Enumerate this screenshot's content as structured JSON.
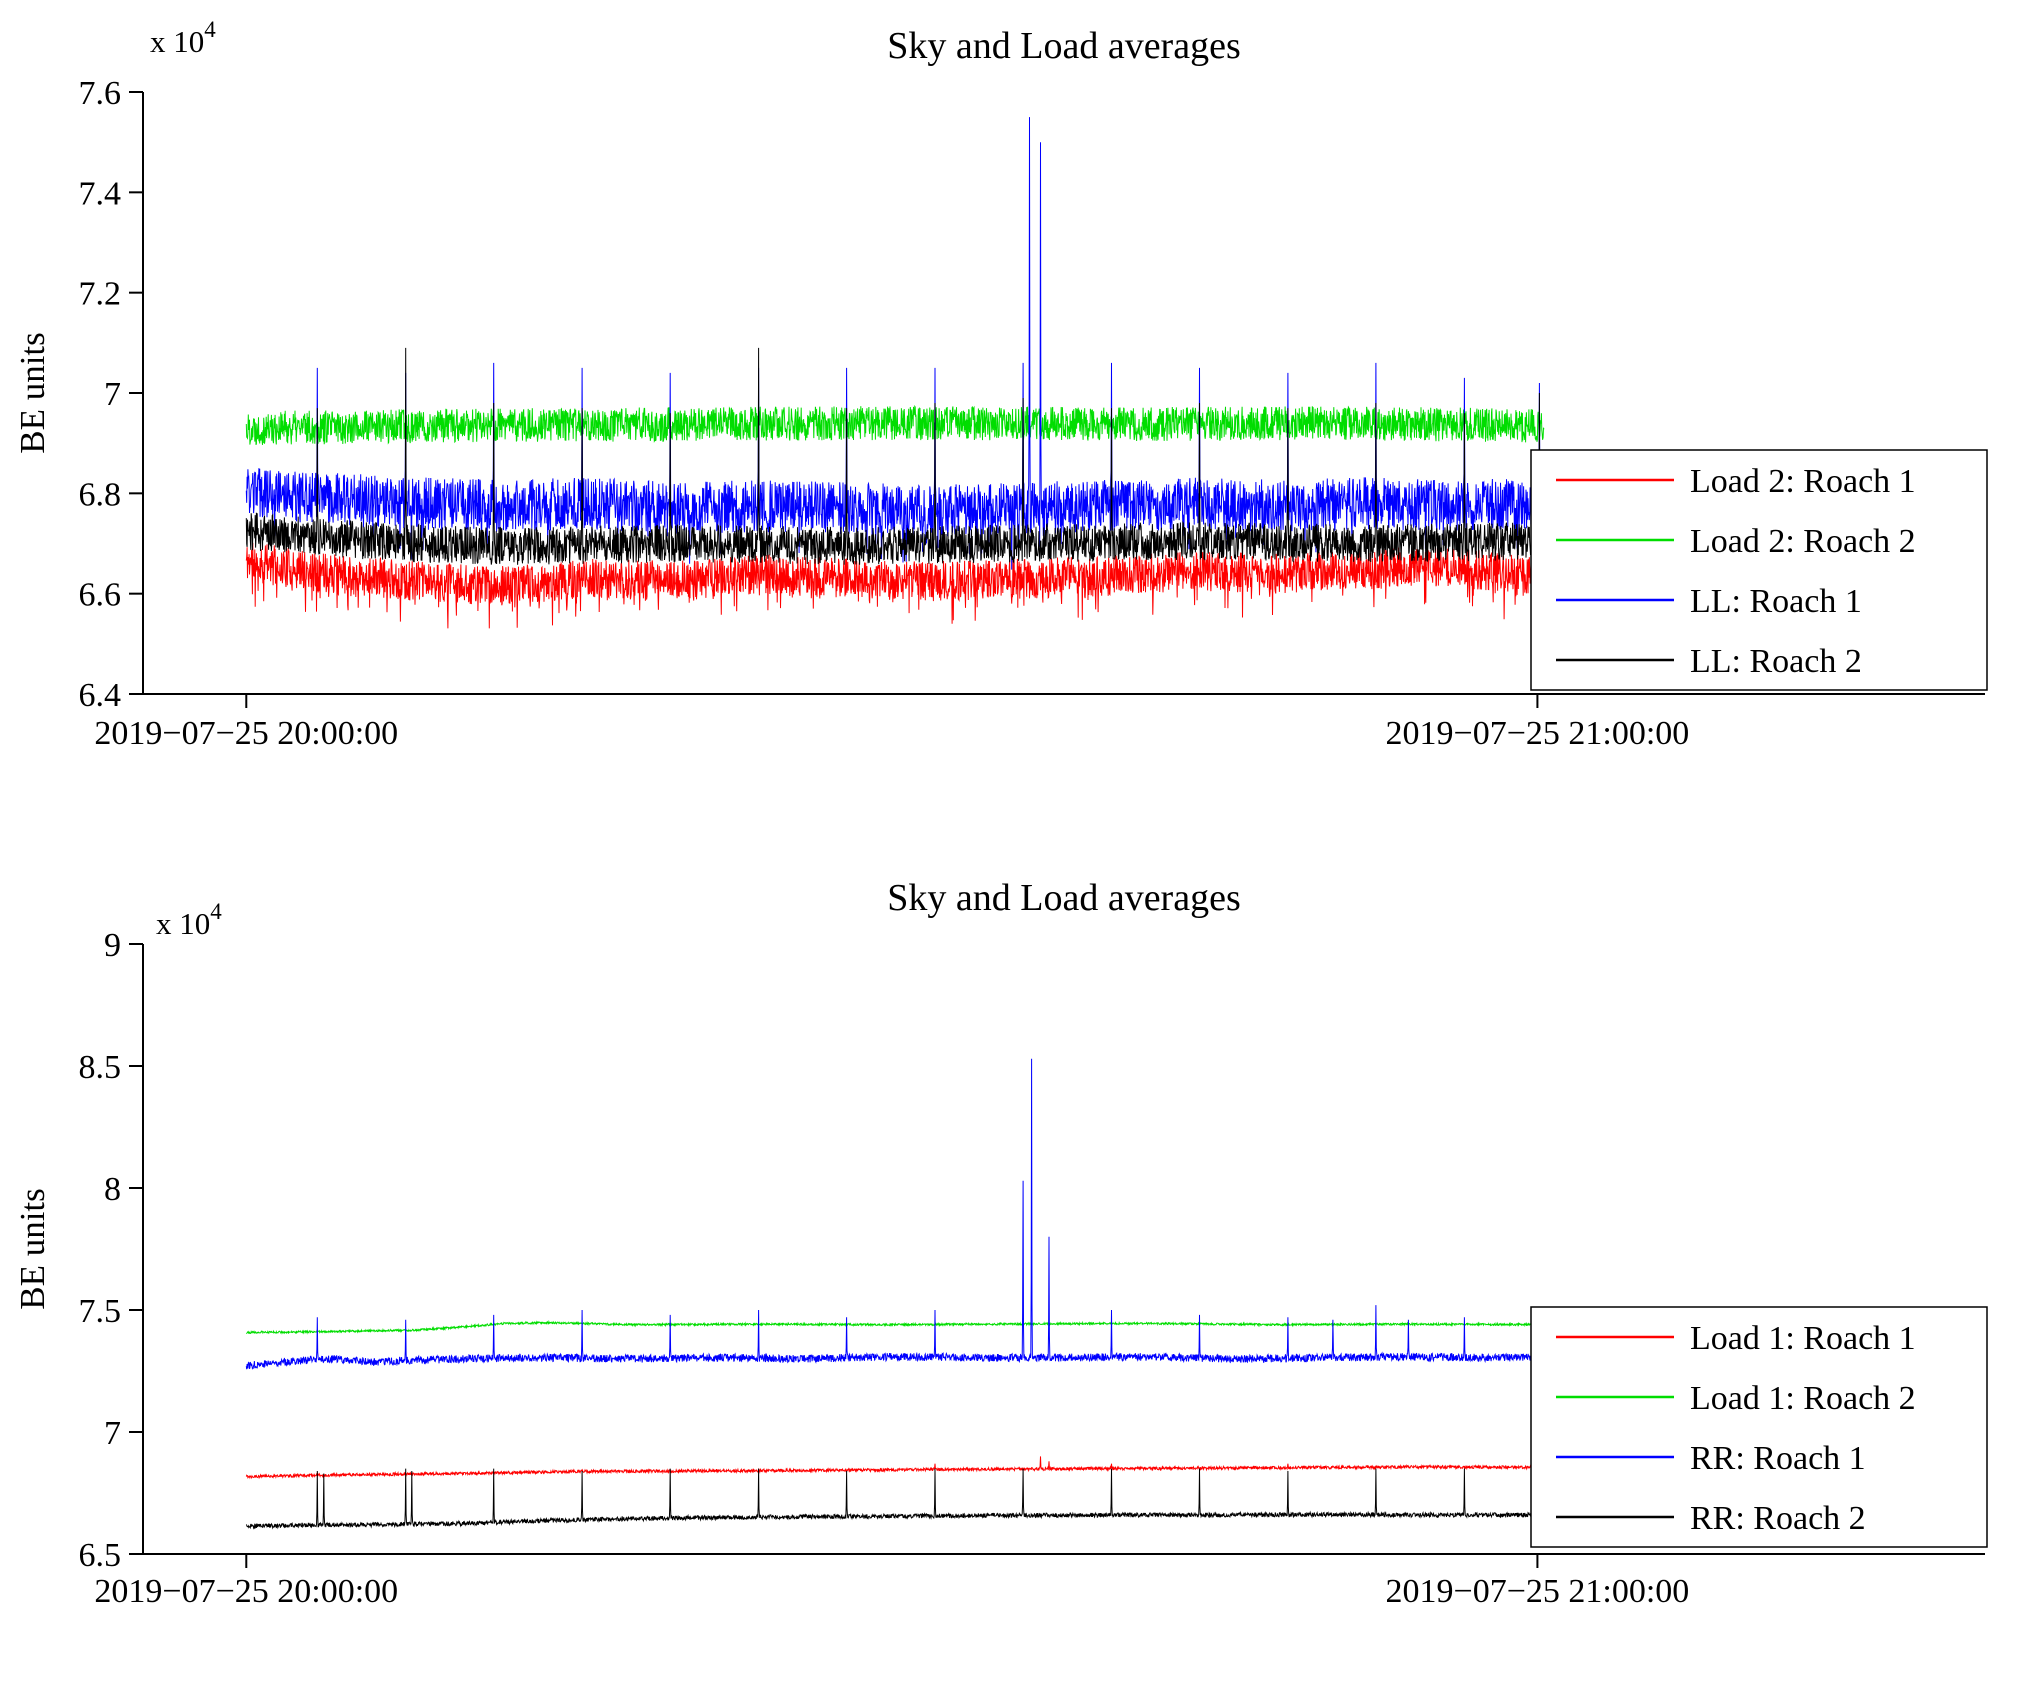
{
  "figure": {
    "background": "#ffffff",
    "axis_color": "#000000"
  },
  "chart_data": [
    {
      "type": "line",
      "title": "Sky and Load averages",
      "ylabel": "BE units",
      "scale_label": "x 10",
      "scale_exponent": "4",
      "ylim": [
        6.4,
        7.6
      ],
      "yticks": [
        {
          "v": 6.4,
          "label": "6.4"
        },
        {
          "v": 6.6,
          "label": "6.6"
        },
        {
          "v": 6.8,
          "label": "6.8"
        },
        {
          "v": 7.0,
          "label": "7"
        },
        {
          "v": 7.2,
          "label": "7.2"
        },
        {
          "v": 7.4,
          "label": "7.4"
        },
        {
          "v": 7.6,
          "label": "7.6"
        }
      ],
      "xlim": [
        -4.8,
        80.8
      ],
      "xticks": [
        {
          "v": 0,
          "label": "2019−07−25 20:00:00"
        },
        {
          "v": 60,
          "label": "2019−07−25 21:00:00"
        }
      ],
      "t_range": [
        0,
        60.3
      ],
      "samples": 3200,
      "legend_position": "right",
      "series": [
        {
          "name": "Load 2: Roach 1",
          "color": "#ff0000",
          "seed": 11,
          "noise": 0.04,
          "down_prob": 0.08,
          "down_extra": 0.06,
          "baseline": [
            [
              0,
              6.665
            ],
            [
              3,
              6.645
            ],
            [
              8,
              6.625
            ],
            [
              12,
              6.615
            ],
            [
              16,
              6.63
            ],
            [
              20,
              6.625
            ],
            [
              24,
              6.64
            ],
            [
              28,
              6.63
            ],
            [
              32,
              6.625
            ],
            [
              36,
              6.63
            ],
            [
              40,
              6.635
            ],
            [
              44,
              6.645
            ],
            [
              48,
              6.64
            ],
            [
              52,
              6.65
            ],
            [
              56,
              6.655
            ],
            [
              60.3,
              6.63
            ]
          ],
          "spikes": []
        },
        {
          "name": "Load 2: Roach 2",
          "color": "#00dd00",
          "seed": 22,
          "noise": 0.034,
          "baseline": [
            [
              0,
              6.93
            ],
            [
              10,
              6.935
            ],
            [
              20,
              6.938
            ],
            [
              30,
              6.94
            ],
            [
              40,
              6.938
            ],
            [
              50,
              6.94
            ],
            [
              60.3,
              6.935
            ]
          ],
          "spikes": []
        },
        {
          "name": "LL: Roach 1",
          "color": "#0000ff",
          "seed": 33,
          "noise": 0.052,
          "down_prob": 0.05,
          "down_extra": 0.07,
          "baseline": [
            [
              0,
              6.8
            ],
            [
              4,
              6.79
            ],
            [
              8,
              6.78
            ],
            [
              12,
              6.775
            ],
            [
              16,
              6.78
            ],
            [
              20,
              6.77
            ],
            [
              24,
              6.775
            ],
            [
              28,
              6.77
            ],
            [
              32,
              6.765
            ],
            [
              36,
              6.77
            ],
            [
              40,
              6.775
            ],
            [
              44,
              6.78
            ],
            [
              48,
              6.775
            ],
            [
              52,
              6.78
            ],
            [
              56,
              6.775
            ],
            [
              60.3,
              6.78
            ]
          ],
          "spikes": [
            [
              3.3,
              7.05
            ],
            [
              7.4,
              7.04
            ],
            [
              11.5,
              7.06
            ],
            [
              15.6,
              7.05
            ],
            [
              19.7,
              7.04
            ],
            [
              23.8,
              7.05
            ],
            [
              27.9,
              7.05
            ],
            [
              32.0,
              7.05
            ],
            [
              36.1,
              7.06
            ],
            [
              36.4,
              7.55
            ],
            [
              36.9,
              7.5
            ],
            [
              40.2,
              7.06
            ],
            [
              44.3,
              7.05
            ],
            [
              48.4,
              7.04
            ],
            [
              52.5,
              7.06
            ],
            [
              56.6,
              7.03
            ],
            [
              60.1,
              7.02
            ]
          ]
        },
        {
          "name": "LL: Roach 2",
          "color": "#000000",
          "seed": 44,
          "noise": 0.038,
          "baseline": [
            [
              0,
              6.725
            ],
            [
              4,
              6.71
            ],
            [
              8,
              6.7
            ],
            [
              12,
              6.695
            ],
            [
              20,
              6.7
            ],
            [
              28,
              6.695
            ],
            [
              36,
              6.7
            ],
            [
              44,
              6.705
            ],
            [
              52,
              6.7
            ],
            [
              60.3,
              6.705
            ]
          ],
          "spikes": [
            [
              3.3,
              6.97
            ],
            [
              7.4,
              7.09
            ],
            [
              11.5,
              6.98
            ],
            [
              15.6,
              6.97
            ],
            [
              19.7,
              6.96
            ],
            [
              23.8,
              7.09
            ],
            [
              27.9,
              6.97
            ],
            [
              32.0,
              6.98
            ],
            [
              36.1,
              6.99
            ],
            [
              40.2,
              6.97
            ],
            [
              44.3,
              6.98
            ],
            [
              48.4,
              6.97
            ],
            [
              52.5,
              6.98
            ],
            [
              56.6,
              6.96
            ],
            [
              60.1,
              7.0
            ]
          ]
        }
      ]
    },
    {
      "type": "line",
      "title": "Sky and Load averages",
      "ylabel": "BE units",
      "scale_label": "x 10",
      "scale_exponent": "4",
      "ylim": [
        6.5,
        9
      ],
      "yticks": [
        {
          "v": 6.5,
          "label": "6.5"
        },
        {
          "v": 7.0,
          "label": "7"
        },
        {
          "v": 7.5,
          "label": "7.5"
        },
        {
          "v": 8.0,
          "label": "8"
        },
        {
          "v": 8.5,
          "label": "8.5"
        },
        {
          "v": 9.0,
          "label": "9"
        }
      ],
      "xlim": [
        -4.8,
        80.8
      ],
      "xticks": [
        {
          "v": 0,
          "label": "2019−07−25 20:00:00"
        },
        {
          "v": 60,
          "label": "2019−07−25 21:00:00"
        }
      ],
      "t_range": [
        0,
        60.3
      ],
      "samples": 3200,
      "legend_position": "right",
      "series": [
        {
          "name": "Load 1: Roach 1",
          "color": "#ff0000",
          "seed": 55,
          "noise": 0.006,
          "baseline": [
            [
              0,
              6.818
            ],
            [
              5,
              6.825
            ],
            [
              10,
              6.83
            ],
            [
              15,
              6.838
            ],
            [
              20,
              6.84
            ],
            [
              25,
              6.842
            ],
            [
              30,
              6.845
            ],
            [
              35,
              6.848
            ],
            [
              40,
              6.85
            ],
            [
              45,
              6.852
            ],
            [
              50,
              6.855
            ],
            [
              55,
              6.857
            ],
            [
              60.3,
              6.855
            ]
          ],
          "spikes": [
            [
              32.0,
              6.87
            ],
            [
              36.9,
              6.9
            ],
            [
              37.3,
              6.88
            ],
            [
              40.2,
              6.87
            ],
            [
              48.4,
              6.87
            ]
          ]
        },
        {
          "name": "Load 1: Roach 2",
          "color": "#00dd00",
          "seed": 66,
          "noise": 0.004,
          "baseline": [
            [
              0,
              7.408
            ],
            [
              4,
              7.412
            ],
            [
              8,
              7.418
            ],
            [
              10,
              7.43
            ],
            [
              12,
              7.445
            ],
            [
              14,
              7.448
            ],
            [
              18,
              7.44
            ],
            [
              24,
              7.442
            ],
            [
              30,
              7.44
            ],
            [
              36,
              7.443
            ],
            [
              42,
              7.445
            ],
            [
              48,
              7.44
            ],
            [
              54,
              7.442
            ],
            [
              60.3,
              7.44
            ]
          ],
          "spikes": []
        },
        {
          "name": "RR: Roach 1",
          "color": "#0000ff",
          "seed": 77,
          "noise": 0.016,
          "baseline": [
            [
              0,
              7.272
            ],
            [
              2,
              7.29
            ],
            [
              4,
              7.3
            ],
            [
              6,
              7.285
            ],
            [
              8,
              7.295
            ],
            [
              10,
              7.3
            ],
            [
              14,
              7.305
            ],
            [
              18,
              7.3
            ],
            [
              22,
              7.305
            ],
            [
              26,
              7.3
            ],
            [
              30,
              7.308
            ],
            [
              34,
              7.305
            ],
            [
              38,
              7.305
            ],
            [
              42,
              7.308
            ],
            [
              46,
              7.3
            ],
            [
              50,
              7.305
            ],
            [
              54,
              7.308
            ],
            [
              58,
              7.305
            ],
            [
              60.3,
              7.305
            ]
          ],
          "spikes": [
            [
              3.3,
              7.47
            ],
            [
              7.4,
              7.46
            ],
            [
              11.5,
              7.48
            ],
            [
              15.6,
              7.5
            ],
            [
              19.7,
              7.48
            ],
            [
              23.8,
              7.5
            ],
            [
              27.9,
              7.47
            ],
            [
              32.0,
              7.5
            ],
            [
              36.1,
              8.03
            ],
            [
              36.5,
              8.53
            ],
            [
              37.3,
              7.8
            ],
            [
              40.2,
              7.5
            ],
            [
              44.3,
              7.48
            ],
            [
              48.4,
              7.47
            ],
            [
              50.5,
              7.46
            ],
            [
              52.5,
              7.52
            ],
            [
              54.0,
              7.46
            ],
            [
              56.6,
              7.47
            ],
            [
              60.1,
              7.45
            ]
          ]
        },
        {
          "name": "RR: Roach 2",
          "color": "#000000",
          "seed": 88,
          "noise": 0.009,
          "baseline": [
            [
              0,
              6.615
            ],
            [
              5,
              6.62
            ],
            [
              10,
              6.625
            ],
            [
              15,
              6.64
            ],
            [
              20,
              6.648
            ],
            [
              25,
              6.652
            ],
            [
              30,
              6.655
            ],
            [
              35,
              6.658
            ],
            [
              40,
              6.66
            ],
            [
              45,
              6.66
            ],
            [
              50,
              6.662
            ],
            [
              55,
              6.66
            ],
            [
              60.3,
              6.66
            ]
          ],
          "spikes": [
            [
              3.3,
              6.84
            ],
            [
              3.6,
              6.83
            ],
            [
              7.4,
              6.85
            ],
            [
              7.7,
              6.84
            ],
            [
              11.5,
              6.85
            ],
            [
              15.6,
              6.84
            ],
            [
              19.7,
              6.85
            ],
            [
              23.8,
              6.85
            ],
            [
              27.9,
              6.84
            ],
            [
              32.0,
              6.85
            ],
            [
              36.1,
              6.85
            ],
            [
              40.2,
              6.85
            ],
            [
              44.3,
              6.85
            ],
            [
              48.4,
              6.84
            ],
            [
              52.5,
              6.85
            ],
            [
              56.6,
              6.85
            ],
            [
              60.1,
              6.84
            ]
          ]
        }
      ]
    }
  ]
}
